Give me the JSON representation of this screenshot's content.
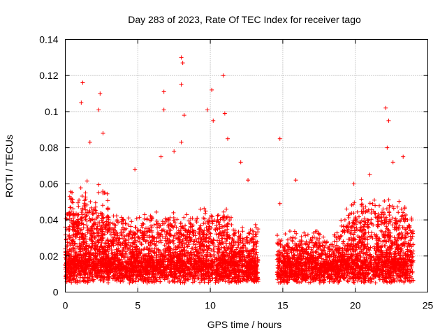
{
  "chart_data": {
    "type": "scatter",
    "title": "Day 283 of 2023, Rate Of TEC Index for receiver tago",
    "xlabel": "GPS time / hours",
    "ylabel": "ROTI / TECUs",
    "xlim": [
      0,
      25
    ],
    "ylim": [
      0,
      0.14
    ],
    "xticks": [
      0,
      5,
      10,
      15,
      20,
      25
    ],
    "yticks": [
      0,
      0.02,
      0.04,
      0.06,
      0.08,
      0.1,
      0.12,
      0.14
    ],
    "ytick_labels": [
      "0",
      "0.02",
      "0.04",
      "0.06",
      "0.08",
      "0.1",
      "0.12",
      "0.14"
    ],
    "xtick_labels": [
      "0",
      "5",
      "10",
      "15",
      "20",
      "25"
    ],
    "grid": true,
    "marker": "plus",
    "color": "#ff0000",
    "data_gap_hours": [
      13.3,
      14.6
    ],
    "notable_points": [
      {
        "x": 0.0,
        "y": 0.036
      },
      {
        "x": 1.2,
        "y": 0.116
      },
      {
        "x": 1.1,
        "y": 0.105
      },
      {
        "x": 1.7,
        "y": 0.083
      },
      {
        "x": 2.4,
        "y": 0.11
      },
      {
        "x": 2.3,
        "y": 0.101
      },
      {
        "x": 2.6,
        "y": 0.088
      },
      {
        "x": 4.8,
        "y": 0.068
      },
      {
        "x": 6.6,
        "y": 0.075
      },
      {
        "x": 6.8,
        "y": 0.111
      },
      {
        "x": 6.8,
        "y": 0.101
      },
      {
        "x": 7.5,
        "y": 0.078
      },
      {
        "x": 8.0,
        "y": 0.13
      },
      {
        "x": 8.1,
        "y": 0.127
      },
      {
        "x": 8.0,
        "y": 0.115
      },
      {
        "x": 8.2,
        "y": 0.098
      },
      {
        "x": 8.0,
        "y": 0.083
      },
      {
        "x": 9.8,
        "y": 0.101
      },
      {
        "x": 10.1,
        "y": 0.112
      },
      {
        "x": 10.2,
        "y": 0.095
      },
      {
        "x": 10.9,
        "y": 0.12
      },
      {
        "x": 11.0,
        "y": 0.099
      },
      {
        "x": 11.2,
        "y": 0.085
      },
      {
        "x": 12.1,
        "y": 0.072
      },
      {
        "x": 12.6,
        "y": 0.062
      },
      {
        "x": 14.8,
        "y": 0.085
      },
      {
        "x": 14.8,
        "y": 0.049
      },
      {
        "x": 15.9,
        "y": 0.062
      },
      {
        "x": 19.9,
        "y": 0.06
      },
      {
        "x": 21.0,
        "y": 0.065
      },
      {
        "x": 22.1,
        "y": 0.102
      },
      {
        "x": 22.3,
        "y": 0.095
      },
      {
        "x": 22.2,
        "y": 0.08
      },
      {
        "x": 22.6,
        "y": 0.072
      },
      {
        "x": 23.3,
        "y": 0.075
      },
      {
        "x": 23.9,
        "y": 0.04
      }
    ]
  }
}
